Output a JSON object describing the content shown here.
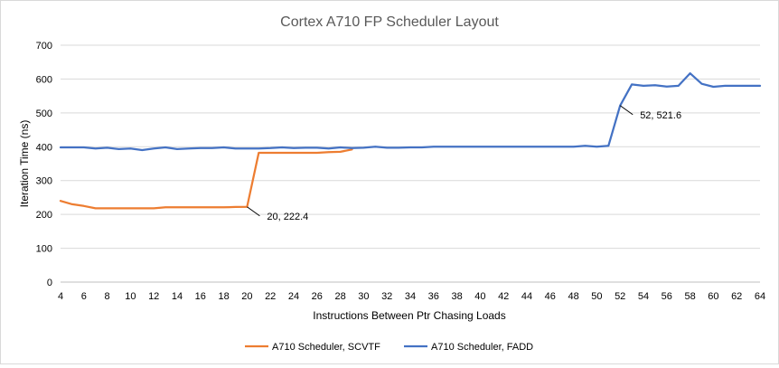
{
  "chart_data": {
    "type": "line",
    "title": "Cortex A710 FP Scheduler Layout",
    "xlabel": "Instructions Between Ptr Chasing Loads",
    "ylabel": "Iteration Time (ns)",
    "xlim": [
      4,
      64
    ],
    "ylim": [
      0,
      700
    ],
    "x_ticks": [
      4,
      6,
      8,
      10,
      12,
      14,
      16,
      18,
      20,
      22,
      24,
      26,
      28,
      30,
      32,
      34,
      36,
      38,
      40,
      42,
      44,
      46,
      48,
      50,
      52,
      54,
      56,
      58,
      60,
      62,
      64
    ],
    "y_ticks": [
      0,
      100,
      200,
      300,
      400,
      500,
      600,
      700
    ],
    "grid": "horizontal",
    "legend": "bottom",
    "series": [
      {
        "name": "A710 Scheduler, SCVTF",
        "color": "#ed7d31",
        "x": [
          4,
          5,
          6,
          7,
          8,
          9,
          10,
          11,
          12,
          13,
          14,
          15,
          16,
          17,
          18,
          19,
          20,
          21,
          22,
          23,
          24,
          25,
          26,
          27,
          28,
          29
        ],
        "y": [
          240,
          230,
          225,
          218,
          218,
          218,
          218,
          218,
          218,
          221,
          221,
          221,
          221,
          221,
          221,
          222,
          222.4,
          382,
          382,
          382,
          382,
          382,
          382,
          384,
          385,
          392
        ]
      },
      {
        "name": "A710 Scheduler, FADD",
        "color": "#4472c4",
        "x": [
          4,
          5,
          6,
          7,
          8,
          9,
          10,
          11,
          12,
          13,
          14,
          15,
          16,
          17,
          18,
          19,
          20,
          21,
          22,
          23,
          24,
          25,
          26,
          27,
          28,
          29,
          30,
          31,
          32,
          33,
          34,
          35,
          36,
          37,
          38,
          39,
          40,
          41,
          42,
          43,
          44,
          45,
          46,
          47,
          48,
          49,
          50,
          51,
          52,
          53,
          54,
          55,
          56,
          57,
          58,
          59,
          60,
          61,
          62,
          63,
          64
        ],
        "y": [
          398,
          398,
          398,
          395,
          397,
          393,
          395,
          390,
          395,
          398,
          393,
          395,
          396,
          396,
          398,
          395,
          395,
          395,
          396,
          398,
          396,
          397,
          397,
          395,
          398,
          396,
          397,
          400,
          397,
          397,
          398,
          398,
          400,
          400,
          400,
          400,
          400,
          400,
          400,
          400,
          400,
          400,
          400,
          400,
          400,
          403,
          400,
          403,
          521.6,
          584,
          580,
          582,
          578,
          580,
          617,
          586,
          577,
          580,
          580,
          580,
          580
        ]
      }
    ],
    "annotations": [
      {
        "text": "20, 222.4",
        "x": 20,
        "y": 222.4
      },
      {
        "text": "52, 521.6",
        "x": 52,
        "y": 521.6
      }
    ]
  }
}
